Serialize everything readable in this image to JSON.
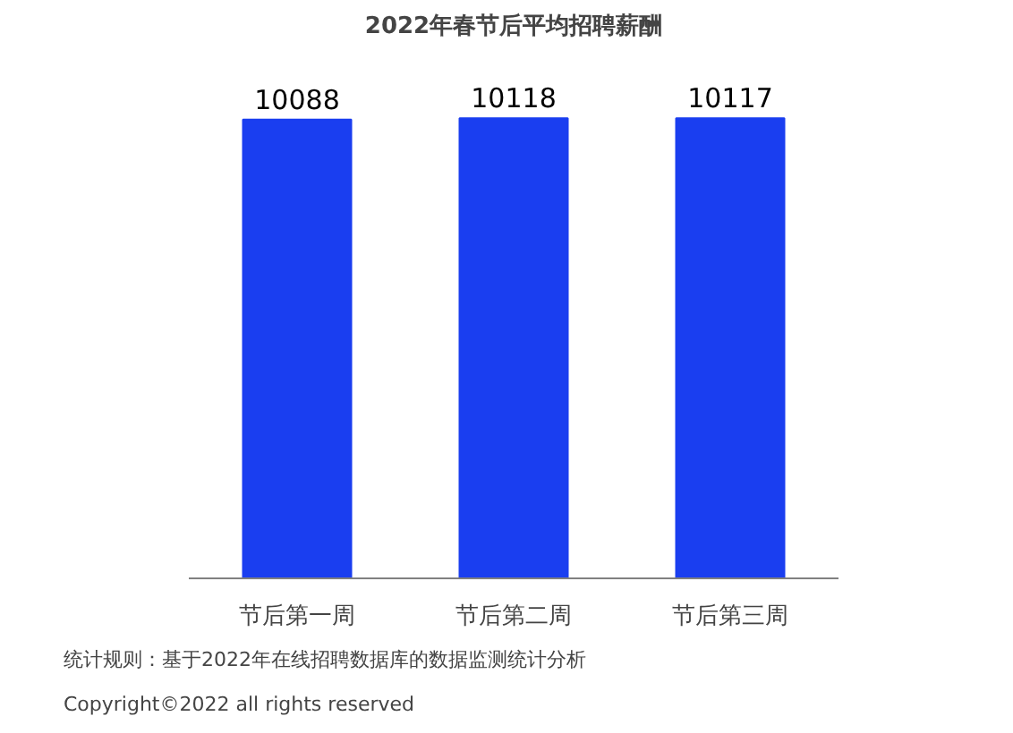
{
  "chart_data": {
    "type": "bar",
    "title": "2022年春节后平均招聘薪酬",
    "categories": [
      "节后第一周",
      "节后第二周",
      "节后第三周"
    ],
    "values": [
      10088,
      10118,
      10117
    ],
    "color": "#1a3ef0",
    "data_labels": true,
    "grid": false,
    "annotations": [
      "统计规则：基于2022年在线招聘数据库的数据监测统计分析",
      "Copyright©2022 all rights reserved"
    ]
  }
}
